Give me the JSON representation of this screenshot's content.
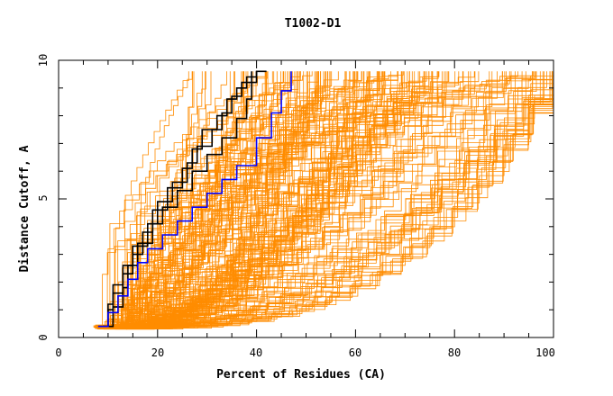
{
  "chart_data": {
    "type": "line",
    "title": "T1002-D1",
    "xlabel": "Percent of Residues (CA)",
    "ylabel": "Distance Cutoff, A",
    "xlim": [
      0,
      100
    ],
    "ylim": [
      0,
      10
    ],
    "x_ticks": [
      0,
      20,
      40,
      60,
      80,
      100
    ],
    "x_tick_labels": [
      "0",
      "20",
      "40",
      "60",
      "80",
      "100"
    ],
    "y_ticks": [
      0,
      5,
      10
    ],
    "y_tick_labels": [
      "0",
      "5",
      "10"
    ],
    "grid": false,
    "legend": "none",
    "colors": {
      "background_series": "#ff8c00",
      "highlight_black": "#000000",
      "highlight_blue": "#0000ff",
      "axis": "#000000"
    },
    "series": [
      {
        "color": "#000000",
        "x": [
          8,
          10,
          11,
          13,
          15,
          18,
          20,
          23,
          26,
          28,
          31,
          33,
          35,
          37,
          40,
          42
        ],
        "y": [
          0.4,
          1.2,
          1.9,
          2.6,
          3.3,
          4.1,
          4.9,
          5.6,
          6.3,
          6.9,
          7.5,
          8.1,
          8.7,
          9.2,
          9.6,
          9.6
        ]
      },
      {
        "color": "#000000",
        "x": [
          9,
          10,
          11,
          13,
          15,
          17,
          19,
          22,
          25,
          27,
          29,
          32,
          34,
          36,
          38,
          40
        ],
        "y": [
          0.4,
          1.0,
          1.6,
          2.3,
          3.0,
          3.8,
          4.6,
          5.4,
          6.1,
          6.8,
          7.5,
          8.0,
          8.6,
          9.0,
          9.4,
          9.6
        ]
      },
      {
        "color": "#000000",
        "x": [
          9,
          11,
          13,
          14,
          16,
          19,
          21,
          24,
          27,
          30,
          33,
          36,
          38,
          39
        ],
        "y": [
          0.4,
          1.1,
          1.8,
          2.6,
          3.4,
          4.1,
          4.7,
          5.3,
          6.0,
          6.6,
          7.2,
          7.9,
          8.6,
          9.6
        ]
      },
      {
        "color": "#0000ff",
        "x": [
          8,
          10,
          12,
          14,
          16,
          18,
          21,
          24,
          27,
          30,
          33,
          36,
          40,
          43,
          45,
          47
        ],
        "y": [
          0.4,
          0.9,
          1.5,
          2.1,
          2.7,
          3.2,
          3.7,
          4.2,
          4.7,
          5.2,
          5.7,
          6.2,
          7.2,
          8.1,
          8.9,
          9.6
        ]
      }
    ]
  }
}
